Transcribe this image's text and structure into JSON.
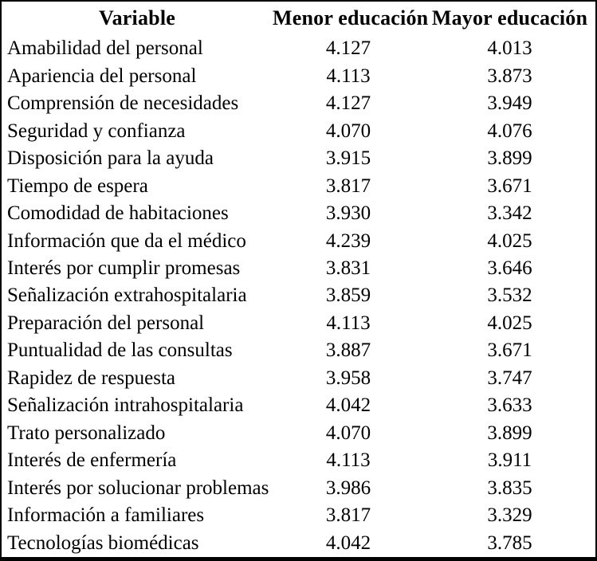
{
  "table": {
    "columns": [
      {
        "label": "Variable"
      },
      {
        "label": "Menor educación"
      },
      {
        "label": "Mayor educación"
      }
    ],
    "rows": [
      [
        "Amabilidad del personal",
        "4.127",
        "4.013"
      ],
      [
        "Apariencia del personal",
        "4.113",
        "3.873"
      ],
      [
        "Comprensión de necesidades",
        "4.127",
        "3.949"
      ],
      [
        "Seguridad y confianza",
        "4.070",
        "4.076"
      ],
      [
        "Disposición para la ayuda",
        "3.915",
        "3.899"
      ],
      [
        "Tiempo de espera",
        "3.817",
        "3.671"
      ],
      [
        "Comodidad de habitaciones",
        "3.930",
        "3.342"
      ],
      [
        "Información que da el médico",
        "4.239",
        "4.025"
      ],
      [
        "Interés por cumplir promesas",
        "3.831",
        "3.646"
      ],
      [
        "Señalización extrahospitalaria",
        "3.859",
        "3.532"
      ],
      [
        "Preparación del personal",
        "4.113",
        "4.025"
      ],
      [
        "Puntualidad de las consultas",
        "3.887",
        "3.671"
      ],
      [
        "Rapidez de respuesta",
        "3.958",
        "3.747"
      ],
      [
        "Señalización intrahospitalaria",
        "4.042",
        "3.633"
      ],
      [
        "Trato personalizado",
        "4.070",
        "3.899"
      ],
      [
        "Interés de enfermería",
        "4.113",
        "3.911"
      ],
      [
        "Interés por solucionar problemas",
        "3.986",
        "3.835"
      ],
      [
        "Información a familiares",
        "3.817",
        "3.329"
      ],
      [
        "Tecnologías biomédicas",
        "4.042",
        "3.785"
      ]
    ]
  },
  "colors": {
    "border": "#000000",
    "text": "#000000",
    "background": "#ffffff"
  },
  "chart_data": {
    "type": "table",
    "title": "",
    "categories": [
      "Amabilidad del personal",
      "Apariencia del personal",
      "Comprensión de necesidades",
      "Seguridad y confianza",
      "Disposición para la ayuda",
      "Tiempo de espera",
      "Comodidad de habitaciones",
      "Información que da el médico",
      "Interés por cumplir promesas",
      "Señalización extrahospitalaria",
      "Preparación del personal",
      "Puntualidad de las consultas",
      "Rapidez de respuesta",
      "Señalización intrahospitalaria",
      "Trato personalizado",
      "Interés de enfermería",
      "Interés por solucionar problemas",
      "Información a familiares",
      "Tecnologías biomédicas"
    ],
    "series": [
      {
        "name": "Menor educación",
        "values": [
          4.127,
          4.113,
          4.127,
          4.07,
          3.915,
          3.817,
          3.93,
          4.239,
          3.831,
          3.859,
          4.113,
          3.887,
          3.958,
          4.042,
          4.07,
          4.113,
          3.986,
          3.817,
          4.042
        ]
      },
      {
        "name": "Mayor educación",
        "values": [
          4.013,
          3.873,
          3.949,
          4.076,
          3.899,
          3.671,
          3.342,
          4.025,
          3.646,
          3.532,
          4.025,
          3.671,
          3.747,
          3.633,
          3.899,
          3.911,
          3.835,
          3.329,
          3.785
        ]
      }
    ]
  }
}
